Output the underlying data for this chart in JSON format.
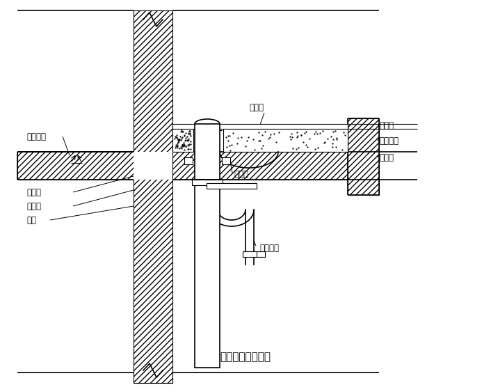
{
  "title": "排水管防水构造图",
  "bg": "#ffffff",
  "lc": "#000000",
  "labels": {
    "indoor_floor": "室内地面",
    "toilet": "大便器",
    "lime_layer": "抹灰层",
    "cement_layer": "水泥炉渣",
    "waterproof_layer": "防水层",
    "brick_edge": "砼框边",
    "fine_stone": "细石砼",
    "sleeve": "套管",
    "water_stop": "止水条",
    "drain_pipe": "排水立管"
  },
  "figsize": [
    7.06,
    5.63
  ],
  "dpi": 100
}
